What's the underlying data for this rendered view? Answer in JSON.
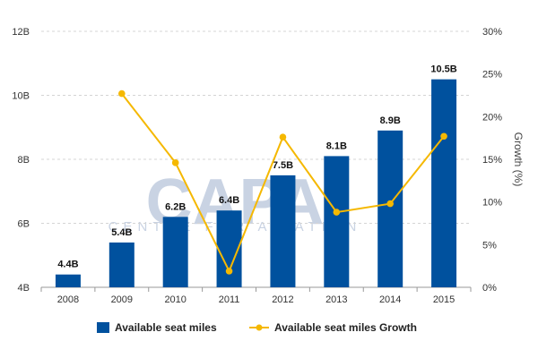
{
  "chart_data": {
    "type": "bar+line",
    "categories": [
      "2008",
      "2009",
      "2010",
      "2011",
      "2012",
      "2013",
      "2014",
      "2015"
    ],
    "series": [
      {
        "name": "Available seat miles",
        "type": "bar",
        "axis": "left",
        "color": "#00519e",
        "values": [
          4.4,
          5.4,
          6.2,
          6.4,
          7.5,
          8.1,
          8.9,
          10.5
        ],
        "labels": [
          "4.4B",
          "5.4B",
          "6.2B",
          "6.4B",
          "7.5B",
          "8.1B",
          "8.9B",
          "10.5B"
        ]
      },
      {
        "name": "Available seat miles Growth",
        "type": "line",
        "axis": "right",
        "color": "#f5b800",
        "values": [
          null,
          22.7,
          14.6,
          1.9,
          17.6,
          8.8,
          9.8,
          17.7
        ]
      }
    ],
    "y_left": {
      "min": 4,
      "max": 12,
      "ticks": [
        "4B",
        "6B",
        "8B",
        "10B",
        "12B"
      ],
      "tick_values": [
        4,
        6,
        8,
        10,
        12
      ]
    },
    "y_right": {
      "min": 0,
      "max": 30,
      "ticks": [
        "0%",
        "5%",
        "10%",
        "15%",
        "20%",
        "25%",
        "30%"
      ],
      "tick_values": [
        0,
        5,
        10,
        15,
        20,
        25,
        30
      ],
      "label": "Growth (%)"
    },
    "grid": "horizontal dashed",
    "legend": "bottom"
  },
  "watermark": {
    "main": "CAPA",
    "sub": "CENTRE FOR AVIATION"
  }
}
